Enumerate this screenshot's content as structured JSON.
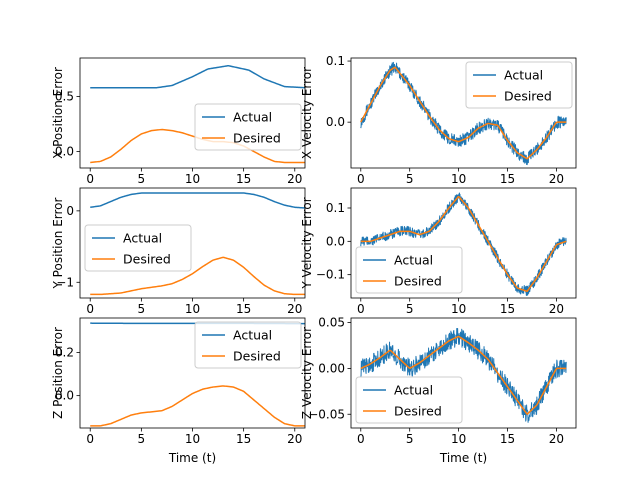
{
  "colors": {
    "actual": "#1f77b4",
    "desired": "#ff7f0e"
  },
  "chart_data": [
    {
      "type": "line",
      "ylabel": "X Position Error",
      "xlabel": "",
      "xlim": [
        -1,
        21
      ],
      "ylim": [
        -0.15,
        0.85
      ],
      "xticks": [
        0,
        5,
        10,
        15,
        20
      ],
      "yticks": [
        0.0,
        0.5
      ],
      "ytick_labels": [
        "0.0",
        "0.5"
      ],
      "legend": "center-right",
      "series": [
        {
          "name": "Actual",
          "x": [
            0,
            6.5,
            8,
            10,
            11.5,
            13.5,
            15.5,
            17,
            19,
            21
          ],
          "y": [
            0.58,
            0.58,
            0.6,
            0.68,
            0.75,
            0.78,
            0.74,
            0.66,
            0.59,
            0.58
          ]
        },
        {
          "name": "Desired",
          "x": [
            0,
            1,
            2,
            3,
            4,
            5,
            6,
            7,
            8,
            9,
            10,
            11,
            12,
            13,
            14,
            15,
            16,
            17,
            18,
            19,
            20,
            21
          ],
          "y": [
            -0.1,
            -0.09,
            -0.05,
            0.02,
            0.1,
            0.16,
            0.19,
            0.2,
            0.19,
            0.17,
            0.14,
            0.11,
            0.09,
            0.09,
            0.08,
            0.05,
            0.0,
            -0.05,
            -0.09,
            -0.1,
            -0.1,
            -0.1
          ]
        }
      ]
    },
    {
      "type": "line",
      "ylabel": "X Velocity Error",
      "xlabel": "",
      "xlim": [
        -1,
        22
      ],
      "ylim": [
        -0.075,
        0.105
      ],
      "xticks": [
        0,
        5,
        10,
        15,
        20
      ],
      "yticks": [
        0.0,
        0.1
      ],
      "ytick_labels": [
        "0.0",
        "0.1"
      ],
      "legend": "top-right",
      "series": [
        {
          "name": "Actual",
          "noise": 0.01,
          "x": [
            0,
            1,
            2,
            3,
            3.5,
            4,
            5,
            6,
            7,
            8,
            9,
            10,
            11,
            12,
            13,
            14,
            15,
            16,
            17,
            18,
            19,
            20,
            21
          ],
          "y": [
            0.0,
            0.03,
            0.06,
            0.085,
            0.09,
            0.08,
            0.06,
            0.035,
            0.01,
            -0.012,
            -0.027,
            -0.032,
            -0.025,
            -0.01,
            -0.002,
            -0.005,
            -0.03,
            -0.05,
            -0.06,
            -0.045,
            -0.025,
            0.0,
            0.0
          ]
        },
        {
          "name": "Desired",
          "x": [
            0,
            1,
            2,
            3,
            3.5,
            4,
            5,
            6,
            7,
            8,
            9,
            10,
            11,
            12,
            13,
            14,
            15,
            16,
            17,
            18,
            19,
            20,
            21
          ],
          "y": [
            0.0,
            0.03,
            0.06,
            0.085,
            0.09,
            0.08,
            0.06,
            0.035,
            0.01,
            -0.012,
            -0.027,
            -0.032,
            -0.025,
            -0.01,
            -0.002,
            -0.005,
            -0.03,
            -0.05,
            -0.06,
            -0.045,
            -0.025,
            0.0,
            0.0
          ]
        }
      ]
    },
    {
      "type": "line",
      "ylabel": "Y Position Error",
      "xlabel": "",
      "xlim": [
        -1,
        21
      ],
      "ylim": [
        -1.22,
        0.32
      ],
      "xticks": [
        0,
        5,
        10,
        15,
        20
      ],
      "yticks": [
        0,
        -1
      ],
      "ytick_labels": [
        "0",
        "−1"
      ],
      "legend": "center-left",
      "series": [
        {
          "name": "Actual",
          "x": [
            0,
            1,
            2,
            3,
            4,
            5,
            7,
            10,
            13,
            15,
            16,
            17,
            18,
            19,
            20,
            21
          ],
          "y": [
            0.05,
            0.07,
            0.13,
            0.19,
            0.23,
            0.25,
            0.25,
            0.25,
            0.25,
            0.25,
            0.23,
            0.19,
            0.13,
            0.08,
            0.05,
            0.04
          ]
        },
        {
          "name": "Desired",
          "x": [
            0,
            1,
            2,
            3,
            4,
            5,
            6,
            7,
            8,
            9,
            10,
            11,
            12,
            13,
            14,
            15,
            16,
            17,
            18,
            19,
            20,
            21
          ],
          "y": [
            -1.17,
            -1.17,
            -1.16,
            -1.15,
            -1.12,
            -1.09,
            -1.07,
            -1.05,
            -1.02,
            -0.96,
            -0.88,
            -0.78,
            -0.69,
            -0.65,
            -0.69,
            -0.79,
            -0.92,
            -1.04,
            -1.12,
            -1.16,
            -1.17,
            -1.17
          ]
        }
      ]
    },
    {
      "type": "line",
      "ylabel": "Y Velocity Error",
      "xlabel": "",
      "xlim": [
        -1,
        22
      ],
      "ylim": [
        -0.17,
        0.16
      ],
      "xticks": [
        0,
        5,
        10,
        15,
        20
      ],
      "yticks": [
        0.1,
        0.0,
        -0.1
      ],
      "ytick_labels": [
        "0.1",
        "0.0",
        "−0.1"
      ],
      "legend": "bottom-left",
      "series": [
        {
          "name": "Actual",
          "noise": 0.015,
          "x": [
            0,
            1,
            2,
            3,
            4,
            5,
            6,
            7,
            8,
            9,
            10,
            11,
            12,
            13,
            14,
            15,
            16,
            17,
            18,
            19,
            20,
            21
          ],
          "y": [
            0.0,
            0.0,
            0.01,
            0.02,
            0.03,
            0.03,
            0.02,
            0.03,
            0.06,
            0.1,
            0.135,
            0.1,
            0.05,
            0.0,
            -0.05,
            -0.1,
            -0.14,
            -0.15,
            -0.11,
            -0.06,
            -0.01,
            0.0
          ]
        },
        {
          "name": "Desired",
          "x": [
            0,
            1,
            2,
            3,
            4,
            5,
            6,
            7,
            8,
            9,
            10,
            11,
            12,
            13,
            14,
            15,
            16,
            17,
            18,
            19,
            20,
            21
          ],
          "y": [
            0.0,
            0.0,
            0.01,
            0.02,
            0.03,
            0.03,
            0.02,
            0.03,
            0.06,
            0.1,
            0.135,
            0.1,
            0.05,
            0.0,
            -0.05,
            -0.1,
            -0.14,
            -0.15,
            -0.11,
            -0.06,
            -0.01,
            0.0
          ]
        }
      ]
    },
    {
      "type": "line",
      "ylabel": "Z Position Error",
      "xlabel": "Time (t)",
      "xlim": [
        -1,
        21
      ],
      "ylim": [
        -0.15,
        0.36
      ],
      "xticks": [
        0,
        5,
        10,
        15,
        20
      ],
      "yticks": [
        0.2,
        0.0
      ],
      "ytick_labels": [
        "0.2",
        "0.0"
      ],
      "legend": "top-right",
      "series": [
        {
          "name": "Actual",
          "x": [
            0,
            5,
            10,
            15,
            20,
            21
          ],
          "y": [
            0.336,
            0.335,
            0.335,
            0.335,
            0.334,
            0.334
          ]
        },
        {
          "name": "Desired",
          "x": [
            0,
            1,
            2,
            3,
            4,
            5,
            6,
            7,
            8,
            9,
            10,
            11,
            12,
            13,
            14,
            15,
            16,
            17,
            18,
            19,
            20,
            21
          ],
          "y": [
            -0.14,
            -0.14,
            -0.13,
            -0.11,
            -0.09,
            -0.08,
            -0.075,
            -0.07,
            -0.05,
            -0.02,
            0.01,
            0.03,
            0.04,
            0.045,
            0.04,
            0.02,
            -0.02,
            -0.06,
            -0.1,
            -0.13,
            -0.14,
            -0.14
          ]
        }
      ]
    },
    {
      "type": "line",
      "ylabel": "Z Velocity Error",
      "xlabel": "Time (t)",
      "xlim": [
        -1,
        22
      ],
      "ylim": [
        -0.065,
        0.055
      ],
      "xticks": [
        0,
        5,
        10,
        15,
        20
      ],
      "yticks": [
        0.05,
        0.0,
        -0.05
      ],
      "ytick_labels": [
        "0.05",
        "0.00",
        "−0.05"
      ],
      "legend": "bottom-left",
      "series": [
        {
          "name": "Actual",
          "noise": 0.01,
          "x": [
            0,
            1,
            2,
            3,
            4,
            5,
            6,
            7,
            8,
            9,
            10,
            11,
            12,
            13,
            14,
            15,
            16,
            17,
            18,
            19,
            20,
            21
          ],
          "y": [
            0.0,
            0.005,
            0.012,
            0.02,
            0.01,
            0.0,
            0.006,
            0.014,
            0.022,
            0.03,
            0.035,
            0.028,
            0.02,
            0.01,
            -0.005,
            -0.02,
            -0.035,
            -0.05,
            -0.04,
            -0.02,
            0.0,
            0.0
          ]
        },
        {
          "name": "Desired",
          "x": [
            0,
            1,
            2,
            3,
            4,
            5,
            6,
            7,
            8,
            9,
            10,
            11,
            12,
            13,
            14,
            15,
            16,
            17,
            18,
            19,
            20,
            21
          ],
          "y": [
            0.0,
            0.005,
            0.012,
            0.02,
            0.01,
            0.0,
            0.006,
            0.014,
            0.022,
            0.03,
            0.035,
            0.028,
            0.02,
            0.01,
            -0.005,
            -0.02,
            -0.035,
            -0.05,
            -0.04,
            -0.02,
            0.0,
            0.0
          ]
        }
      ]
    }
  ]
}
